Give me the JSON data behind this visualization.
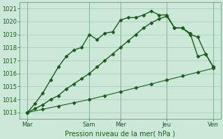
{
  "background_color": "#cce8d8",
  "plot_bg_color": "#cce8d8",
  "grid_color": "#99c4aa",
  "line_color": "#1a5c1a",
  "xlabel": "Pression niveau de la mer( hPa )",
  "ylim": [
    1012.5,
    1021.5
  ],
  "xlim": [
    0,
    13
  ],
  "yticks": [
    1013,
    1014,
    1015,
    1016,
    1017,
    1018,
    1019,
    1020,
    1021
  ],
  "xtick_labels": [
    "Mar",
    "Sam",
    "Mer",
    "Jeu",
    "Ven"
  ],
  "xtick_positions": [
    0.5,
    4.5,
    6.5,
    9.5,
    12.5
  ],
  "vline_positions": [
    0.5,
    4.5,
    6.5,
    9.5,
    12.5
  ],
  "line1_x": [
    0.5,
    1.0,
    1.5,
    2.0,
    2.5,
    3.0,
    3.5,
    4.0,
    4.5,
    5.0,
    5.5,
    6.0,
    6.5,
    7.0,
    7.5,
    8.0,
    8.5,
    9.0,
    9.5,
    10.0,
    10.5,
    11.0,
    11.5,
    12.0,
    12.5
  ],
  "line1_y": [
    1013.0,
    1013.7,
    1014.5,
    1015.5,
    1016.5,
    1017.3,
    1017.8,
    1018.0,
    1019.0,
    1018.6,
    1019.1,
    1019.2,
    1020.1,
    1020.3,
    1020.3,
    1020.5,
    1020.8,
    1020.5,
    1020.5,
    1019.5,
    1019.5,
    1019.1,
    1017.3,
    1017.5,
    1016.5
  ],
  "line2_x": [
    0.5,
    1.0,
    1.5,
    2.0,
    2.5,
    3.0,
    3.5,
    4.0,
    4.5,
    5.0,
    5.5,
    6.0,
    6.5,
    7.0,
    7.5,
    8.0,
    8.5,
    9.0,
    9.5,
    10.0,
    10.5,
    11.0,
    11.5,
    12.0,
    12.5
  ],
  "line2_y": [
    1013.0,
    1013.3,
    1013.6,
    1014.0,
    1014.3,
    1014.8,
    1015.2,
    1015.6,
    1016.0,
    1016.5,
    1017.0,
    1017.5,
    1018.0,
    1018.5,
    1019.0,
    1019.5,
    1019.9,
    1020.2,
    1020.4,
    1019.5,
    1019.5,
    1019.0,
    1018.8,
    1017.5,
    1016.5
  ],
  "line3_x": [
    0.5,
    1.5,
    2.5,
    3.5,
    4.5,
    5.5,
    6.5,
    7.5,
    8.5,
    9.5,
    10.5,
    11.5,
    12.5
  ],
  "line3_y": [
    1013.0,
    1013.25,
    1013.5,
    1013.75,
    1014.0,
    1014.3,
    1014.6,
    1014.9,
    1015.2,
    1015.5,
    1015.8,
    1016.1,
    1016.4
  ],
  "marker": "D",
  "markersize": 2.5,
  "linewidth_main": 1.0,
  "linewidth_thin": 0.8,
  "vline_color": "#5a8a6a",
  "fontsize_ticks": 6,
  "fontsize_xlabel": 7
}
